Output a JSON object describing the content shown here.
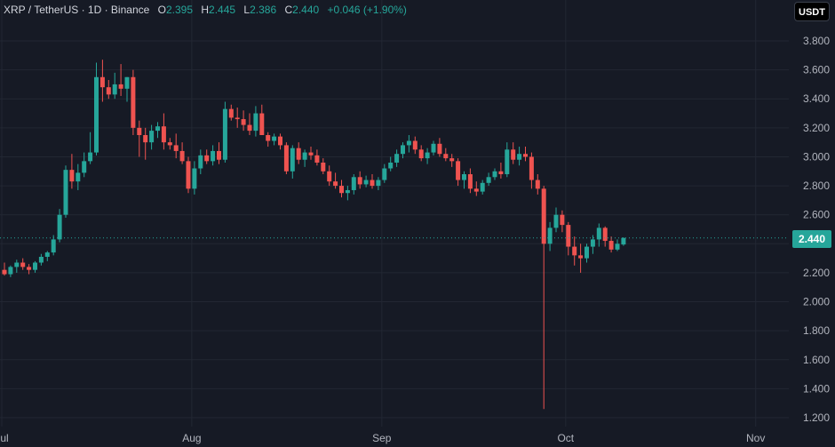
{
  "header": {
    "symbol": "XRP / TetherUS · 1D · Binance",
    "open_label": "O",
    "open": "2.395",
    "high_label": "H",
    "high": "2.445",
    "low_label": "L",
    "low": "2.386",
    "close_label": "C",
    "close": "2.440",
    "change": "+0.046 (+1.90%)"
  },
  "currency": "USDT",
  "last_price": "2.440",
  "colors": {
    "up": "#26a69a",
    "down": "#ef5350",
    "background": "#161a25",
    "grid": "#222733",
    "text": "#b2b5be"
  },
  "chart_data": {
    "type": "candlestick",
    "xlabel": "",
    "ylabel": "",
    "ylim": [
      1.2,
      3.9
    ],
    "yticks": [
      "1.200",
      "1.400",
      "1.600",
      "1.800",
      "2.000",
      "2.200",
      "2.400",
      "2.600",
      "2.800",
      "3.000",
      "3.200",
      "3.400",
      "3.600",
      "3.800"
    ],
    "xticks": [
      {
        "label": "Jul",
        "day": 0
      },
      {
        "label": "Aug",
        "day": 31
      },
      {
        "label": "Sep",
        "day": 62
      },
      {
        "label": "Oct",
        "day": 92
      },
      {
        "label": "Nov",
        "day": 123
      }
    ],
    "last_price_line": 2.44,
    "candles": [
      [
        2.22,
        2.27,
        2.18,
        2.19
      ],
      [
        2.19,
        2.25,
        2.17,
        2.24
      ],
      [
        2.24,
        2.29,
        2.2,
        2.27
      ],
      [
        2.27,
        2.3,
        2.22,
        2.24
      ],
      [
        2.24,
        2.26,
        2.19,
        2.22
      ],
      [
        2.22,
        2.28,
        2.2,
        2.27
      ],
      [
        2.27,
        2.33,
        2.25,
        2.31
      ],
      [
        2.31,
        2.35,
        2.28,
        2.34
      ],
      [
        2.34,
        2.46,
        2.32,
        2.43
      ],
      [
        2.43,
        2.64,
        2.41,
        2.6
      ],
      [
        2.6,
        2.94,
        2.58,
        2.91
      ],
      [
        2.91,
        3.02,
        2.78,
        2.83
      ],
      [
        2.83,
        2.95,
        2.77,
        2.89
      ],
      [
        2.89,
        3.03,
        2.86,
        2.97
      ],
      [
        2.97,
        3.17,
        2.95,
        3.03
      ],
      [
        3.03,
        3.65,
        3.01,
        3.55
      ],
      [
        3.55,
        3.67,
        3.38,
        3.48
      ],
      [
        3.48,
        3.53,
        3.4,
        3.43
      ],
      [
        3.43,
        3.58,
        3.4,
        3.5
      ],
      [
        3.5,
        3.64,
        3.42,
        3.47
      ],
      [
        3.47,
        3.55,
        3.38,
        3.55
      ],
      [
        3.55,
        3.6,
        3.15,
        3.2
      ],
      [
        3.2,
        3.25,
        3.0,
        3.15
      ],
      [
        3.15,
        3.2,
        2.98,
        3.1
      ],
      [
        3.1,
        3.22,
        3.05,
        3.18
      ],
      [
        3.18,
        3.24,
        3.13,
        3.21
      ],
      [
        3.21,
        3.3,
        3.05,
        3.1
      ],
      [
        3.1,
        3.13,
        3.05,
        3.08
      ],
      [
        3.08,
        3.16,
        2.99,
        3.04
      ],
      [
        3.04,
        3.1,
        2.95,
        2.97
      ],
      [
        2.97,
        3.0,
        2.75,
        2.78
      ],
      [
        2.78,
        2.97,
        2.74,
        2.92
      ],
      [
        2.92,
        3.05,
        2.88,
        3.01
      ],
      [
        3.01,
        3.05,
        2.95,
        2.97
      ],
      [
        2.97,
        3.08,
        2.94,
        3.04
      ],
      [
        3.04,
        3.1,
        2.95,
        2.98
      ],
      [
        2.98,
        3.38,
        2.96,
        3.33
      ],
      [
        3.33,
        3.36,
        3.25,
        3.27
      ],
      [
        3.27,
        3.34,
        3.2,
        3.26
      ],
      [
        3.26,
        3.32,
        3.18,
        3.22
      ],
      [
        3.22,
        3.3,
        3.15,
        3.18
      ],
      [
        3.18,
        3.35,
        3.14,
        3.3
      ],
      [
        3.3,
        3.36,
        3.15,
        3.15
      ],
      [
        3.15,
        3.17,
        3.07,
        3.11
      ],
      [
        3.11,
        3.16,
        3.08,
        3.14
      ],
      [
        3.14,
        3.16,
        3.05,
        3.08
      ],
      [
        3.08,
        3.1,
        2.88,
        2.9
      ],
      [
        2.9,
        3.08,
        2.85,
        3.06
      ],
      [
        3.06,
        3.1,
        2.95,
        2.98
      ],
      [
        2.98,
        3.05,
        2.93,
        3.03
      ],
      [
        3.03,
        3.07,
        2.98,
        3.01
      ],
      [
        3.01,
        3.05,
        2.94,
        2.96
      ],
      [
        2.96,
        2.99,
        2.88,
        2.9
      ],
      [
        2.9,
        2.94,
        2.8,
        2.83
      ],
      [
        2.83,
        2.89,
        2.78,
        2.8
      ],
      [
        2.8,
        2.84,
        2.72,
        2.75
      ],
      [
        2.75,
        2.8,
        2.7,
        2.77
      ],
      [
        2.77,
        2.88,
        2.74,
        2.86
      ],
      [
        2.86,
        2.9,
        2.78,
        2.81
      ],
      [
        2.81,
        2.87,
        2.79,
        2.84
      ],
      [
        2.84,
        2.88,
        2.78,
        2.8
      ],
      [
        2.8,
        2.86,
        2.77,
        2.84
      ],
      [
        2.84,
        2.95,
        2.82,
        2.92
      ],
      [
        2.92,
        3.0,
        2.9,
        2.96
      ],
      [
        2.96,
        3.05,
        2.93,
        3.02
      ],
      [
        3.02,
        3.1,
        2.99,
        3.08
      ],
      [
        3.08,
        3.15,
        3.03,
        3.11
      ],
      [
        3.11,
        3.14,
        3.02,
        3.05
      ],
      [
        3.05,
        3.08,
        2.97,
        2.99
      ],
      [
        2.99,
        3.06,
        2.95,
        3.03
      ],
      [
        3.03,
        3.11,
        3.01,
        3.09
      ],
      [
        3.09,
        3.13,
        3.0,
        3.02
      ],
      [
        3.02,
        3.06,
        2.97,
        2.99
      ],
      [
        2.99,
        3.02,
        2.93,
        2.97
      ],
      [
        2.97,
        2.99,
        2.8,
        2.84
      ],
      [
        2.84,
        2.9,
        2.78,
        2.88
      ],
      [
        2.88,
        2.92,
        2.75,
        2.78
      ],
      [
        2.78,
        2.83,
        2.73,
        2.76
      ],
      [
        2.76,
        2.84,
        2.74,
        2.82
      ],
      [
        2.82,
        2.89,
        2.8,
        2.86
      ],
      [
        2.86,
        2.92,
        2.84,
        2.9
      ],
      [
        2.9,
        2.96,
        2.85,
        2.88
      ],
      [
        2.88,
        3.1,
        2.86,
        3.05
      ],
      [
        3.05,
        3.1,
        2.95,
        2.98
      ],
      [
        2.98,
        3.07,
        2.94,
        3.02
      ],
      [
        3.02,
        3.07,
        2.97,
        3.0
      ],
      [
        3.0,
        3.03,
        2.78,
        2.84
      ],
      [
        2.84,
        2.88,
        2.74,
        2.78
      ],
      [
        2.78,
        2.8,
        1.26,
        2.4
      ],
      [
        2.4,
        2.55,
        2.35,
        2.51
      ],
      [
        2.51,
        2.65,
        2.48,
        2.6
      ],
      [
        2.6,
        2.63,
        2.48,
        2.53
      ],
      [
        2.53,
        2.55,
        2.32,
        2.38
      ],
      [
        2.38,
        2.45,
        2.25,
        2.32
      ],
      [
        2.32,
        2.4,
        2.2,
        2.3
      ],
      [
        2.3,
        2.4,
        2.27,
        2.38
      ],
      [
        2.38,
        2.46,
        2.33,
        2.43
      ],
      [
        2.43,
        2.54,
        2.38,
        2.51
      ],
      [
        2.51,
        2.52,
        2.38,
        2.42
      ],
      [
        2.42,
        2.45,
        2.34,
        2.36
      ],
      [
        2.36,
        2.43,
        2.35,
        2.4
      ],
      [
        2.395,
        2.445,
        2.386,
        2.44
      ]
    ],
    "candles_format": [
      "open",
      "high",
      "low",
      "close"
    ]
  }
}
